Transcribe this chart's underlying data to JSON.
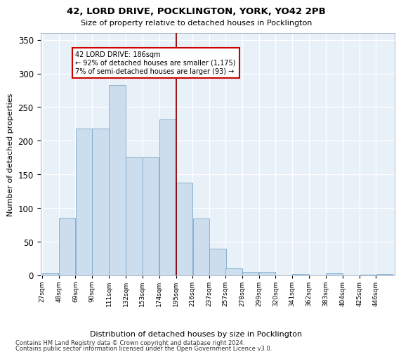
{
  "title": "42, LORD DRIVE, POCKLINGTON, YORK, YO42 2PB",
  "subtitle": "Size of property relative to detached houses in Pocklington",
  "xlabel": "Distribution of detached houses by size in Pocklington",
  "ylabel": "Number of detached properties",
  "bar_color": "#ccdded",
  "bar_edge_color": "#7aaacc",
  "background_color": "#e8f0f8",
  "grid_color": "#ffffff",
  "vline_color": "#8b0000",
  "annotation_title": "42 LORD DRIVE: 186sqm",
  "annotation_line1": "← 92% of detached houses are smaller (1,175)",
  "annotation_line2": "7% of semi-detached houses are larger (93) →",
  "annotation_box_color": "#cc0000",
  "bins_left": [
    27,
    48,
    69,
    90,
    111,
    132,
    153,
    174,
    195,
    216,
    237,
    257,
    278,
    299,
    320,
    341,
    362,
    383,
    404,
    425,
    446
  ],
  "bin_width": 21,
  "bar_heights": [
    3,
    86,
    218,
    218,
    283,
    175,
    175,
    232,
    138,
    85,
    40,
    10,
    5,
    5,
    0,
    2,
    0,
    3,
    0,
    1,
    2
  ],
  "vline_x": 195,
  "ylim": [
    0,
    360
  ],
  "yticks": [
    0,
    50,
    100,
    150,
    200,
    250,
    300,
    350
  ],
  "footer1": "Contains HM Land Registry data © Crown copyright and database right 2024.",
  "footer2": "Contains public sector information licensed under the Open Government Licence v3.0."
}
